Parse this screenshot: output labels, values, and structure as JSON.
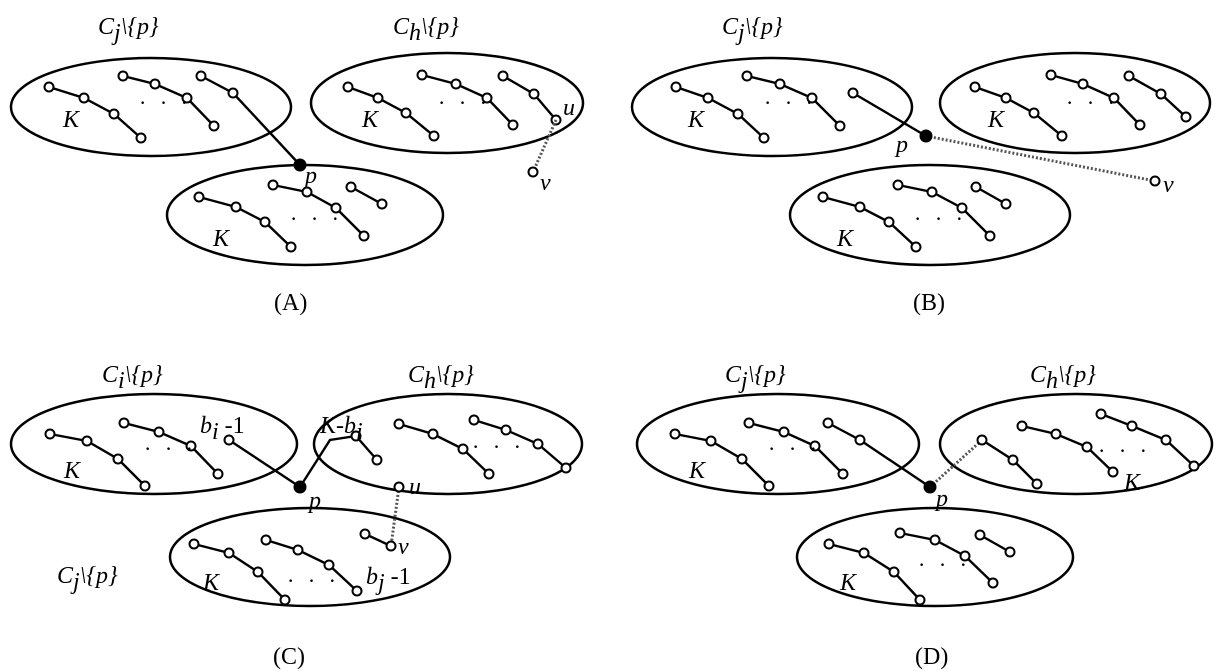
{
  "panels": [
    {
      "caption": "(A)",
      "labels": {
        "cj": "C",
        "cj_sub": "j",
        "cj_set": "\\{p}",
        "ch": "C",
        "ch_sub": "h",
        "ch_set": "\\{p}",
        "k1": "K",
        "k2": "K",
        "k3": "K",
        "p": "p",
        "u": "u",
        "v": "v",
        "ellipsis": "· · ·"
      }
    },
    {
      "caption": "(B)",
      "labels": {
        "cj": "C",
        "cj_sub": "j",
        "cj_set": "\\{p}",
        "k1": "K",
        "k2": "K",
        "k3": "K",
        "p": "p",
        "v": "v",
        "ellipsis": "· · ·"
      }
    },
    {
      "caption": "(C)",
      "labels": {
        "ci": "C",
        "ci_sub": "i",
        "ci_set": "\\{p}",
        "ch": "C",
        "ch_sub": "h",
        "ch_set": "\\{p}",
        "cj": "C",
        "cj_sub": "j",
        "cj_set": "\\{p}",
        "k1": "K",
        "k3": "K",
        "bi": "b",
        "bi_sub": "i",
        "bi_rest": " -1",
        "kbi": "K-b",
        "kbi_sub": "i",
        "bj": "b",
        "bj_sub": "j",
        "bj_rest": " -1",
        "p": "p",
        "u": "u",
        "v": "v",
        "ellipsis": "· · ·"
      }
    },
    {
      "caption": "(D)",
      "labels": {
        "cj": "C",
        "cj_sub": "j",
        "cj_set": "\\{p}",
        "ch": "C",
        "ch_sub": "h",
        "ch_set": "\\{p}",
        "k1": "K",
        "k2": "K",
        "k3": "K",
        "p": "p",
        "ellipsis": "· · ·"
      }
    }
  ]
}
